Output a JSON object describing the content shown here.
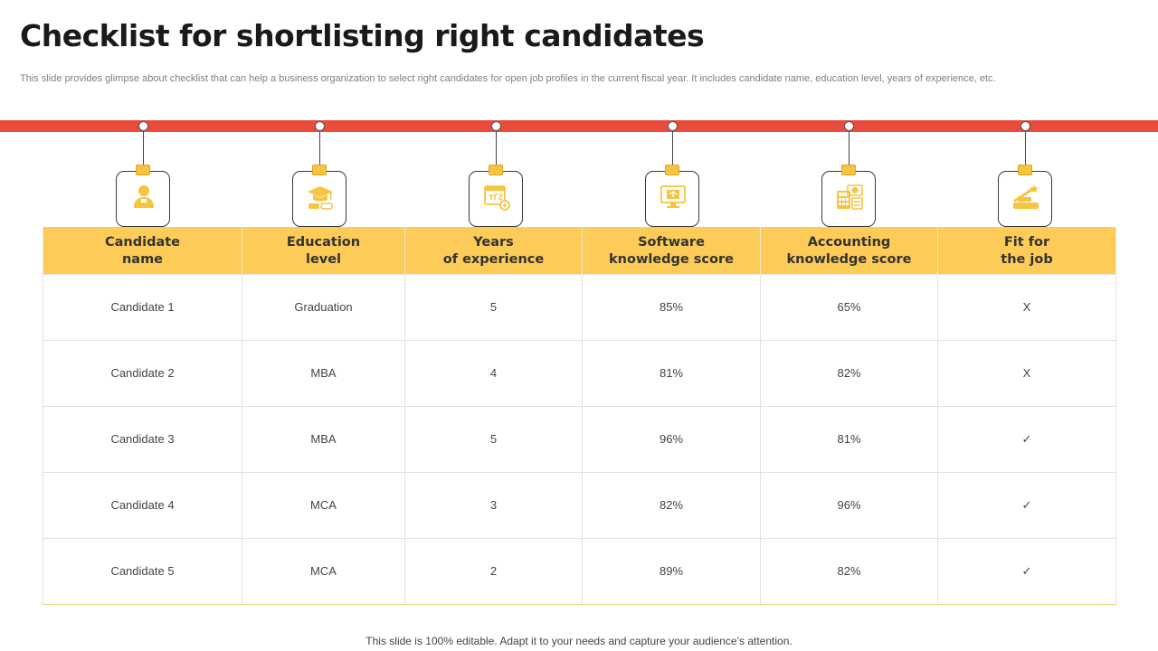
{
  "title": "Checklist for shortlisting right candidates",
  "subtitle": "This slide provides glimpse about checklist that can help a business organization to select right candidates for open job profiles in the current fiscal year.  It includes candidate name, education level, years of experience, etc.",
  "colors": {
    "accent_red": "#e94b3c",
    "header_yellow": "#fccb58",
    "icon_yellow": "#f7c43f"
  },
  "icons": [
    "user-icon",
    "graduation-cap-icon",
    "calendar-years-icon",
    "software-monitor-icon",
    "accounting-calculator-icon",
    "fit-job-icon"
  ],
  "table": {
    "headers": [
      {
        "line1": "Candidate",
        "line2": "name"
      },
      {
        "line1": "Education",
        "line2": "level"
      },
      {
        "line1": "Years",
        "line2": "of experience"
      },
      {
        "line1": "Software",
        "line2": "knowledge score"
      },
      {
        "line1": "Accounting",
        "line2": "knowledge score"
      },
      {
        "line1": "Fit for",
        "line2": "the job"
      }
    ],
    "rows": [
      [
        "Candidate  1",
        "Graduation",
        "5",
        "85%",
        "65%",
        "X"
      ],
      [
        "Candidate  2",
        "MBA",
        "4",
        "81%",
        "82%",
        "X"
      ],
      [
        "Candidate  3",
        "MBA",
        "5",
        "96%",
        "81%",
        "✓"
      ],
      [
        "Candidate  4",
        "MCA",
        "3",
        "82%",
        "96%",
        "✓"
      ],
      [
        "Candidate  5",
        "MCA",
        "2",
        "89%",
        "82%",
        "✓"
      ]
    ]
  },
  "footer": "This slide is 100% editable. Adapt it to your needs and capture your audience’s attention."
}
